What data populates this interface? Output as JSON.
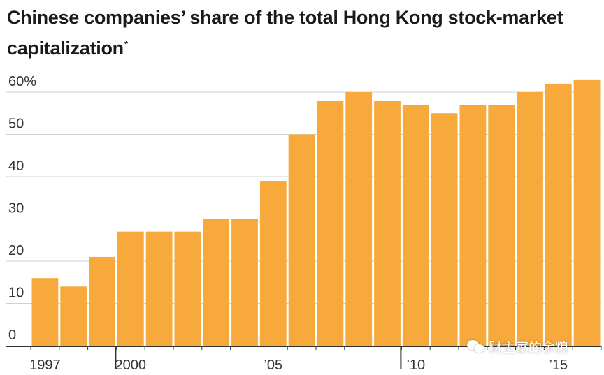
{
  "title_main": "Chinese companies’ share of the total Hong Kong stock-market capitalization",
  "title_mark": "*",
  "watermark_text": "财主家的余粮",
  "colors": {
    "bar": "#F7A93B",
    "bar_edge": "#E8952A",
    "grid": "#d0d0d0",
    "axis": "#333333",
    "text": "#333333"
  },
  "chart_data": {
    "type": "bar",
    "title": "Chinese companies’ share of the total Hong Kong stock-market capitalization*",
    "xlabel": "",
    "ylabel": "",
    "categories": [
      1997,
      1998,
      1999,
      2000,
      2001,
      2002,
      2003,
      2004,
      2005,
      2006,
      2007,
      2008,
      2009,
      2010,
      2011,
      2012,
      2013,
      2014,
      2015,
      2016
    ],
    "values": [
      16,
      14,
      21,
      27,
      27,
      27,
      30,
      30,
      39,
      50,
      58,
      60,
      58,
      57,
      55,
      57,
      57,
      60,
      62,
      63
    ],
    "ylim": [
      0,
      60
    ],
    "yticks": [
      0,
      10,
      20,
      30,
      40,
      50,
      60
    ],
    "ytick_labels": [
      "0",
      "10",
      "20",
      "30",
      "40",
      "50",
      "60%"
    ],
    "xtick_labels": [
      {
        "index": 0,
        "label": "1997"
      },
      {
        "index": 3,
        "label": "2000"
      },
      {
        "index": 8,
        "label": "’05"
      },
      {
        "index": 13,
        "label": "’10"
      },
      {
        "index": 18,
        "label": "’15"
      }
    ],
    "major_ticks": [
      3,
      13
    ],
    "grid": true
  }
}
